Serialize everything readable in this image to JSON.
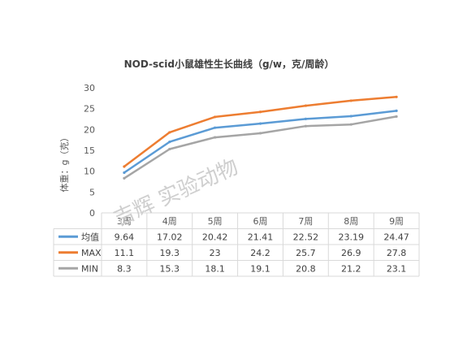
{
  "chart_data": {
    "type": "line",
    "title": "NOD-scid小鼠雄性生长曲线（g/w，克/周龄）",
    "ylabel": "体重：g（克）",
    "xlabel": "",
    "categories": [
      "3周",
      "4周",
      "5周",
      "6周",
      "7周",
      "8周",
      "9周"
    ],
    "ylim": [
      0,
      30
    ],
    "yticks": [
      0,
      5,
      10,
      15,
      20,
      25,
      30
    ],
    "grid": false,
    "legend": "data-table",
    "series": [
      {
        "name": "均值",
        "color": "#5B9BD5",
        "values": [
          9.64,
          17.02,
          20.42,
          21.41,
          22.52,
          23.19,
          24.47
        ],
        "labels": [
          "9.64",
          "17.02",
          "20.42",
          "21.41",
          "22.52",
          "23.19",
          "24.47"
        ]
      },
      {
        "name": "MAX",
        "color": "#ED7D31",
        "values": [
          11.1,
          19.3,
          23,
          24.2,
          25.7,
          26.9,
          27.8
        ],
        "labels": [
          "11.1",
          "19.3",
          "23",
          "24.2",
          "25.7",
          "26.9",
          "27.8"
        ]
      },
      {
        "name": "MIN",
        "color": "#A5A5A5",
        "values": [
          8.3,
          15.3,
          18.1,
          19.1,
          20.8,
          21.2,
          23.1
        ],
        "labels": [
          "8.3",
          "15.3",
          "18.1",
          "19.1",
          "20.8",
          "21.2",
          "23.1"
        ]
      }
    ]
  },
  "watermark": "吉辉 实验动物"
}
